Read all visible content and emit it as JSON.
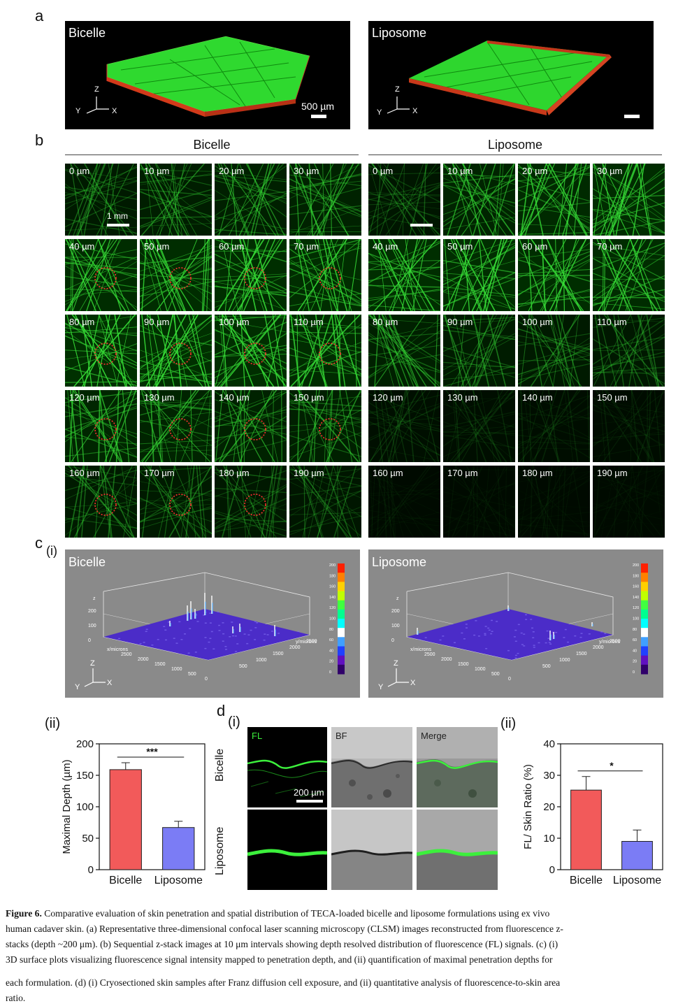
{
  "panel_a": {
    "label": "a",
    "bicelle": {
      "title": "Bicelle",
      "scale": "500 µm",
      "axis_z": "Z",
      "axis_y": "Y",
      "axis_x": "X"
    },
    "liposome": {
      "title": "Liposome",
      "axis_z": "Z",
      "axis_y": "Y",
      "axis_x": "X"
    }
  },
  "panel_b": {
    "label": "b",
    "bicelle_header": "Bicelle",
    "liposome_header": "Liposome",
    "scale": "1 mm",
    "depths": [
      "0 µm",
      "10 µm",
      "20 µm",
      "30 µm",
      "40 µm",
      "50 µm",
      "60 µm",
      "70 µm",
      "80 µm",
      "90 µm",
      "100 µm",
      "110 µm",
      "120 µm",
      "130 µm",
      "140 µm",
      "150 µm",
      "160 µm",
      "170 µm",
      "180 µm",
      "190 µm"
    ],
    "bicelle_intensity": [
      0.45,
      0.55,
      0.6,
      0.65,
      0.9,
      0.92,
      0.95,
      0.95,
      1.0,
      1.0,
      0.95,
      0.9,
      0.75,
      0.7,
      0.65,
      0.6,
      0.45,
      0.45,
      0.4,
      0.35
    ],
    "liposome_intensity": [
      0.35,
      0.7,
      0.85,
      0.9,
      0.95,
      0.95,
      0.92,
      0.9,
      0.6,
      0.5,
      0.45,
      0.4,
      0.18,
      0.14,
      0.12,
      0.1,
      0.06,
      0.05,
      0.05,
      0.04
    ]
  },
  "panel_c": {
    "label": "c",
    "sub_i": "(i)",
    "bicelle": {
      "title": "Bicelle"
    },
    "liposome": {
      "title": "Liposome"
    },
    "z_ticks": [
      "200",
      "100",
      "0"
    ],
    "x_axis": "x/microns",
    "y_axis": "y/microns",
    "x_ticks": [
      "2500",
      "2000",
      "1500",
      "1000",
      "500",
      "0"
    ],
    "y_ticks": [
      "0",
      "500",
      "1000",
      "1500",
      "2000",
      "2500"
    ],
    "colorbar_ticks": [
      "200",
      "180",
      "160",
      "140",
      "120",
      "100",
      "80",
      "60",
      "40",
      "20",
      "0"
    ],
    "axis_z": "Z",
    "axis_y": "Y",
    "axis_x": "X"
  },
  "chart_depth": {
    "label": "(ii)",
    "chart_data": {
      "type": "bar",
      "categories": [
        "Bicelle",
        "Liposome"
      ],
      "values": [
        159,
        67
      ],
      "errors": [
        11,
        10
      ],
      "ylabel": "Maximal Depth (µm)",
      "ylim": [
        0,
        200
      ],
      "yticks": [
        "0",
        "50",
        "100",
        "150",
        "200"
      ],
      "significance": "***",
      "colors": [
        "#f25a5a",
        "#7b7cf5"
      ]
    }
  },
  "panel_d": {
    "label": "d",
    "sub_i": "(i)",
    "col_fl": "FL",
    "col_bf": "BF",
    "col_merge": "Merge",
    "row_bicelle": "Bicelle",
    "row_liposome": "Liposome",
    "scale": "200 µm"
  },
  "chart_ratio": {
    "label": "(ii)",
    "chart_data": {
      "type": "bar",
      "categories": [
        "Bicelle",
        "Liposome"
      ],
      "values": [
        25.3,
        9.0
      ],
      "errors": [
        4.3,
        3.6
      ],
      "ylabel": "FL/ Skin Ratio (%)",
      "ylim": [
        0,
        40
      ],
      "yticks": [
        "0",
        "10",
        "20",
        "30",
        "40"
      ],
      "significance": "*",
      "colors": [
        "#f25a5a",
        "#7b7cf5"
      ]
    }
  },
  "caption": {
    "fig": "Figure 6.",
    "line1": "Comparative evaluation of skin penetration and spatial distribution of TECA-loaded bicelle and liposome formulations using ex vivo",
    "line2": "human cadaver skin. (a) Representative three-dimensional confocal laser scanning microscopy (CLSM) images reconstructed from fluorescence z-",
    "line3": "stacks (depth ~200 μm). (b) Sequential z-stack images at 10 μm intervals showing depth resolved distribution of fluorescence (FL) signals. (c) (i)",
    "line4": "3D surface plots visualizing fluorescence signal intensity mapped to penetration depth, and (ii) quantification of maximal penetration depths for",
    "line5": "each formulation. (d) (i) Cryosectioned skin samples after Franz diffusion cell exposure, and (ii) quantitative analysis of fluorescence-to-skin area",
    "line6": "ratio."
  }
}
